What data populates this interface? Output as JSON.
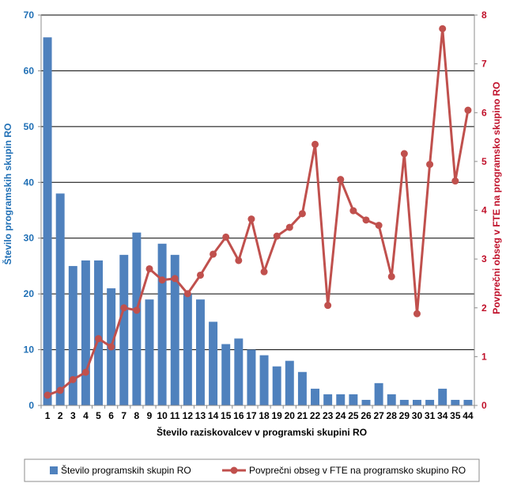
{
  "chart_data": {
    "type": "bar+line",
    "categories": [
      "1",
      "2",
      "3",
      "4",
      "5",
      "6",
      "7",
      "8",
      "9",
      "10",
      "11",
      "12",
      "13",
      "14",
      "15",
      "16",
      "17",
      "18",
      "19",
      "20",
      "21",
      "22",
      "23",
      "24",
      "25",
      "26",
      "27",
      "28",
      "29",
      "30",
      "31",
      "34",
      "35",
      "44"
    ],
    "xlabel": "Število raziskovalcev v programski skupini RO",
    "ylabel_left": "Število programskih skupin RO",
    "ylabel_right": "Povprečni obseg v FTE na programsko skupino RO",
    "ylim_left": [
      0,
      70
    ],
    "yticks_left": [
      0,
      10,
      20,
      30,
      40,
      50,
      60,
      70
    ],
    "ylim_right": [
      0,
      8
    ],
    "yticks_right": [
      0,
      1,
      2,
      3,
      4,
      5,
      6,
      7,
      8
    ],
    "grid": true,
    "legend_position": "bottom",
    "series": [
      {
        "name": "Število programskih skupin RO",
        "type": "bar",
        "axis": "left",
        "color": "#4f81bd",
        "values": [
          66,
          38,
          25,
          26,
          26,
          21,
          27,
          31,
          19,
          29,
          27,
          20,
          19,
          15,
          11,
          12,
          10,
          9,
          7,
          8,
          6,
          3,
          2,
          2,
          2,
          1,
          4,
          2,
          1,
          1,
          1,
          3,
          1,
          1
        ]
      },
      {
        "name": "Povprečni obseg v FTE na programsko skupino RO",
        "type": "line",
        "axis": "right",
        "color": "#c0504d",
        "values": [
          0.21,
          0.31,
          0.53,
          0.68,
          1.37,
          1.2,
          2.0,
          1.95,
          2.8,
          2.57,
          2.6,
          2.29,
          2.67,
          3.1,
          3.45,
          2.97,
          3.82,
          2.74,
          3.47,
          3.65,
          3.93,
          5.35,
          2.05,
          4.63,
          3.99,
          3.8,
          3.69,
          2.64,
          5.16,
          1.88,
          4.94,
          7.72,
          4.6,
          6.05
        ]
      }
    ]
  }
}
